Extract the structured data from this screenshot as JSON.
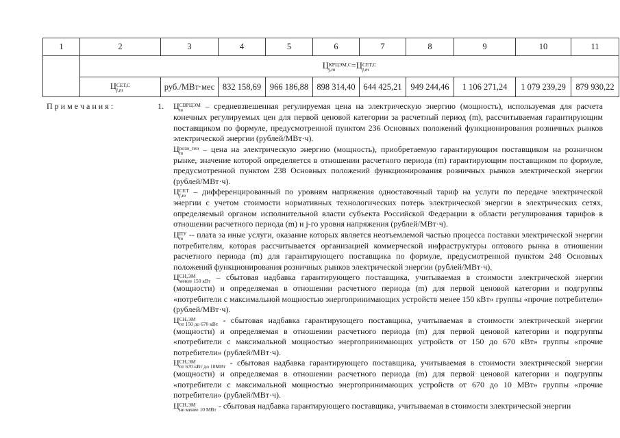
{
  "table": {
    "headers": [
      "1",
      "2",
      "3",
      "4",
      "5",
      "6",
      "7",
      "8",
      "9",
      "10",
      "11"
    ],
    "formula": {
      "left": {
        "base": "Ц",
        "sup": "КРЦЭМ,С",
        "sub": "j,m"
      },
      "equals": "=",
      "right": {
        "base": "Ц",
        "sup": "СЕТ,С",
        "sub": "j,m"
      }
    },
    "row": {
      "label": {
        "base": "Ц",
        "sup": "СЕТ,С",
        "sub": "j,m"
      },
      "unit": "руб./МВт·мес",
      "values": [
        "832 158,69",
        "966 186,88",
        "898 314,40",
        "644 425,21",
        "949 244,46",
        "1 106 271,24",
        "1 079 239,29",
        "879 930,22"
      ]
    }
  },
  "notes": {
    "label": "П р и м е ч а н и я :",
    "number": "1.",
    "items": [
      {
        "base": "Ц",
        "sup": "СВРЦЭМ",
        "sub": "m",
        "sub_roman": false,
        "text": "– средневзвешенная регулируемая цена на электрическую энергию (мощность), используемая для расчета конечных регулируемых цен для первой ценовой категории за расчетный период (m), рассчитываемая гарантирующим поставщиком по формуле, предусмотренной пунктом 236  Основных положений функционирования розничных рынков электрической энергии (рублей/МВт·ч)."
      },
      {
        "base": "Ц",
        "sup": "розн_ген",
        "sub": "m",
        "sub_roman": false,
        "text": "– цена на электрическую энергию (мощность), приобретаемую гарантирующим поставщиком на розничном рынке, значение которой определяется в отношении расчетного периода (m) гарантирующим поставщиком по формуле, предусмотренной пунктом 238 Основных положений функционирования розничных рынков электрической энергии (рублей/МВт·ч)."
      },
      {
        "base": "Ц",
        "sup": "СЕТ",
        "sub": "j,m",
        "sub_roman": false,
        "text": "– дифференцированный по уровням напряжения одноставочный тариф на услуги по передаче электрической энергии с учетом стоимости нормативных технологических потерь электрической энергии в электрических сетях, определяемый органом исполнительной власти субъекта Российской Федерации в области регулирования тарифов в отношении расчетного периода (m) и j-го уровня напряжения (рублей/МВт·ч)."
      },
      {
        "base": "Ц",
        "sup": "ПУ",
        "sub": "m",
        "sub_roman": false,
        "text": "-- плата за иные услуги, оказание которых является неотъемлемой частью процесса поставки электрической энергии потребителям, которая рассчитывается организацией коммерческой инфраструктуры оптового рынка в отношении расчетного периода (m) для гарантирующего поставщика по формуле, предусмотренной пунктом 248 Основных положений функционирования розничных рынков электрической энергии (рублей/МВт·ч)."
      },
      {
        "base": "Ц",
        "sup": "СН,ЭМ",
        "sub": "менее 150 кВт",
        "sub_roman": true,
        "text": "– сбытовая надбавка гарантирующего поставщика, учитываемая в стоимости электрической энергии (мощности) и определяемая в отношении расчетного периода (m) для первой ценовой категории и подгруппы «потребители с максимальной мощностью энергопринимающих устройств менее 150 кВт» группы «прочие потребители» (рублей/МВт·ч)."
      },
      {
        "base": "Ц",
        "sup": "СН,ЭМ",
        "sub": "от 150 до 670 кВт",
        "sub_roman": true,
        "text": "- сбытовая надбавка гарантирующего поставщика, учитываемая в стоимости электрической энергии (мощности) и определяемая в отношении расчетного периода (m) для первой ценовой категории и подгруппы «потребители с максимальной мощностью энергопринимающих устройств от 150 до 670 кВт» группы «прочие потребители» (рублей/МВт·ч)."
      },
      {
        "base": "Ц",
        "sup": "СН,ЭМ",
        "sub": "от 670 кВт до 10МВт",
        "sub_roman": true,
        "text": "- сбытовая надбавка гарантирующего поставщика, учитываемая в стоимости электрической энергии (мощности) и определяемая в отношении расчетного периода (m) для первой ценовой категории и подгруппы «потребители с максимальной мощностью энергопринимающих устройств от 670 до 10 МВт» группы «прочие потребители» (рублей/МВт·ч)."
      },
      {
        "base": "Ц",
        "sup": "СН,ЭМ",
        "sub": "не менее 10 МВт",
        "sub_roman": true,
        "text": "- сбытовая надбавка гарантирующего поставщика, учитываемая в стоимости электрической энергии"
      }
    ]
  }
}
